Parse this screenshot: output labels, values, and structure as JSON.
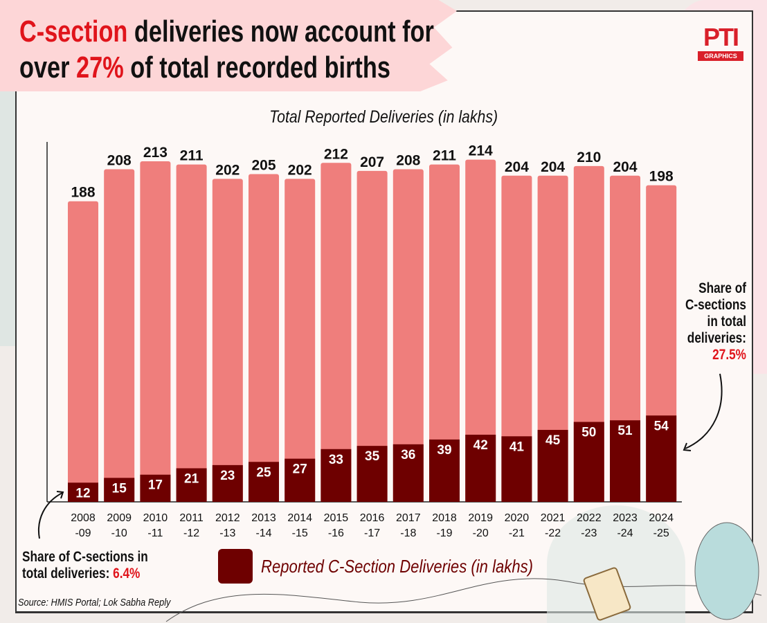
{
  "header": {
    "title_part1_red": "C-section",
    "title_part1_rest": " deliveries now account for",
    "title_part2_start": "over ",
    "title_part2_red": "27%",
    "title_part2_rest": " of total recorded births",
    "logo_text": "PTI",
    "logo_sub": "GRAPHICS"
  },
  "colors": {
    "total": "#ef7e7c",
    "csection": "#6e0000",
    "accent": "#e0141b"
  },
  "chart_data": {
    "type": "bar",
    "stacked": "overlay",
    "title": "Total Reported Deliveries (in lakhs)",
    "categories": [
      [
        "2008",
        "-09"
      ],
      [
        "2009",
        "-10"
      ],
      [
        "2010",
        "-11"
      ],
      [
        "2011",
        "-12"
      ],
      [
        "2012",
        "-13"
      ],
      [
        "2013",
        "-14"
      ],
      [
        "2014",
        "-15"
      ],
      [
        "2015",
        "-16"
      ],
      [
        "2016",
        "-17"
      ],
      [
        "2017",
        "-18"
      ],
      [
        "2018",
        "-19"
      ],
      [
        "2019",
        "-20"
      ],
      [
        "2020",
        "-21"
      ],
      [
        "2021",
        "-22"
      ],
      [
        "2022",
        "-23"
      ],
      [
        "2023",
        "-24"
      ],
      [
        "2024",
        "-25"
      ]
    ],
    "series": [
      {
        "name": "Total Reported Deliveries (in lakhs)",
        "values": [
          188,
          208,
          213,
          211,
          202,
          205,
          202,
          212,
          207,
          208,
          211,
          214,
          204,
          204,
          210,
          204,
          198
        ]
      },
      {
        "name": "Reported C-Section Deliveries (in lakhs)",
        "values": [
          12,
          15,
          17,
          21,
          23,
          25,
          27,
          33,
          35,
          36,
          39,
          42,
          41,
          45,
          50,
          51,
          54
        ]
      }
    ],
    "legend": {
      "label": "Reported C-Section Deliveries (in lakhs)",
      "placement": "bottom"
    }
  },
  "annotations": {
    "right_label": "Share of C-sections in total deliveries:",
    "right_value": "27.5%",
    "left_label": "Share of C-sections in total deliveries:",
    "left_value": "6.4%"
  },
  "source": "Source: HMIS Portal; Lok Sabha Reply"
}
